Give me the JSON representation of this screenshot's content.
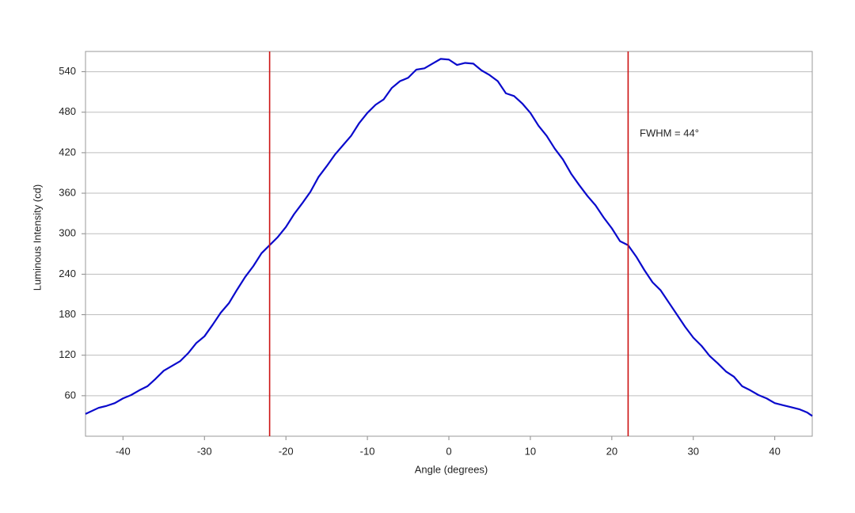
{
  "chart_data": {
    "type": "line",
    "x_label": "Angle (degrees)",
    "y_label": "Luminous Intensity (cd)",
    "x": [
      -44.6,
      -43,
      -42,
      -41,
      -40,
      -39,
      -38,
      -37,
      -36,
      -35,
      -34,
      -33,
      -32,
      -31,
      -30,
      -29,
      -28,
      -27,
      -26,
      -25,
      -24,
      -23,
      -22,
      -21,
      -20,
      -19,
      -18,
      -17,
      -16,
      -15,
      -14,
      -13,
      -12,
      -11,
      -10,
      -9,
      -8,
      -7,
      -6,
      -5,
      -4,
      -3,
      -2,
      -1,
      0,
      1,
      2,
      3,
      4,
      5,
      6,
      7,
      8,
      9,
      10,
      11,
      12,
      13,
      14,
      15,
      16,
      17,
      18,
      19,
      20,
      21,
      22,
      23,
      24,
      25,
      26,
      27,
      28,
      29,
      30,
      31,
      32,
      33,
      34,
      35,
      36,
      37,
      38,
      39,
      40,
      41,
      42,
      43,
      44,
      44.6
    ],
    "series": [
      {
        "color": "#0a0acc",
        "values": [
          33,
          42,
          45,
          49,
          56,
          61,
          68,
          74,
          85,
          97,
          104,
          111,
          123,
          138,
          148,
          165,
          183,
          197,
          217,
          236,
          252,
          271,
          283,
          295,
          310,
          329,
          345,
          362,
          384,
          400,
          417,
          431,
          445,
          464,
          479,
          491,
          499,
          516,
          526,
          531,
          543,
          545,
          552,
          559,
          558,
          550,
          553,
          552,
          542,
          535,
          526,
          508,
          504,
          493,
          479,
          460,
          445,
          426,
          410,
          389,
          372,
          356,
          342,
          324,
          308,
          289,
          283,
          266,
          246,
          228,
          216,
          198,
          180,
          162,
          146,
          134,
          119,
          108,
          96,
          88,
          74,
          68,
          61,
          56,
          49,
          46,
          43,
          40,
          35,
          30
        ]
      }
    ],
    "vlines": [
      -22,
      22
    ],
    "vline_color": "#cc1111",
    "annotation": "FWHM = 44°",
    "xlim": [
      -44.6,
      44.6
    ],
    "ylim": [
      0,
      570
    ],
    "xticks": [
      -40,
      -30,
      -20,
      -10,
      0,
      10,
      20,
      30,
      40
    ],
    "yticks": [
      60,
      120,
      180,
      240,
      300,
      360,
      420,
      480,
      540
    ],
    "grid": true
  }
}
